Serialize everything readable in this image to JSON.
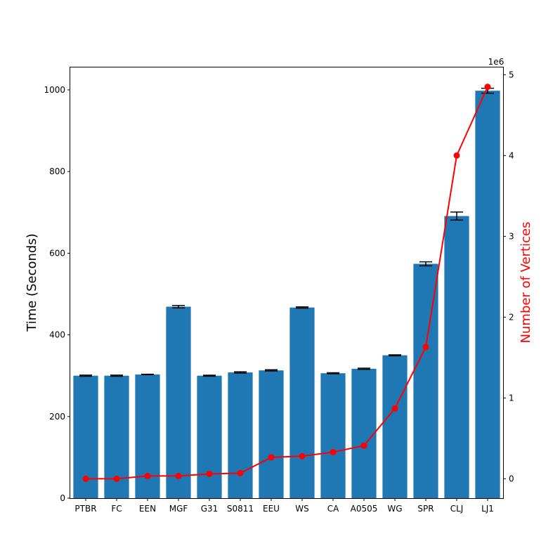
{
  "chart_data": {
    "type": "bar",
    "categories": [
      "PTBR",
      "FC",
      "EEN",
      "MGF",
      "G31",
      "S0811",
      "EEU",
      "WS",
      "CA",
      "A0505",
      "WG",
      "SPR",
      "CLJ",
      "LJ1"
    ],
    "series": [
      {
        "axis": "left",
        "type": "bar",
        "values": [
          300,
          300,
          303,
          469,
          300,
          308,
          313,
          467,
          306,
          317,
          350,
          574,
          691,
          998
        ],
        "error": [
          1.5,
          1.5,
          0.5,
          3,
          1.2,
          1.5,
          1.5,
          1.5,
          1.2,
          1.5,
          1.2,
          5,
          10,
          6
        ],
        "color": "#1f77b4"
      },
      {
        "axis": "right",
        "type": "line",
        "values": [
          0.0,
          0.0,
          0.035,
          0.035,
          0.06,
          0.07,
          0.265,
          0.28,
          0.33,
          0.41,
          0.87,
          1.63,
          4.0,
          4.85
        ],
        "color": "#ff0000"
      }
    ],
    "ylabel": "Time (Seconds)",
    "y2label": "Number of Vertices",
    "y2label_color": "#ff0000",
    "y2_multiplier": "1e6",
    "ylim": [
      0,
      1055
    ],
    "y2lim": [
      -0.24,
      5.09
    ],
    "yticks": [
      "0",
      "200",
      "400",
      "600",
      "800",
      "1000"
    ],
    "y2ticks": [
      "0",
      "1",
      "2",
      "3",
      "4",
      "5"
    ],
    "grid": false,
    "legend": "none"
  }
}
